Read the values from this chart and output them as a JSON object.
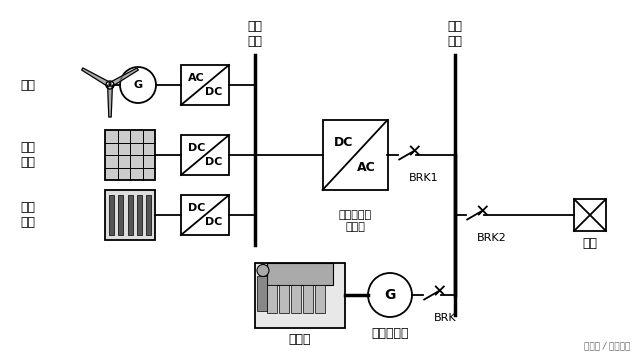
{
  "bg_color": "#ffffff",
  "line_color": "#000000",
  "label_dc_bus": "直流\n母线",
  "label_ac_bus": "交流\n母线",
  "label_wind": "风电",
  "label_pv": "光伏\n发电",
  "label_bat": "电池\n储能",
  "label_diesel": "柴油机",
  "label_gen3": "三相发电机",
  "label_inv": "新能源发电\n逆变器",
  "label_load": "负载",
  "label_brk1": "BRK1",
  "label_brk2": "BRK2",
  "label_brk": "BRK",
  "label_watermark": "头条号 / 电气技术"
}
